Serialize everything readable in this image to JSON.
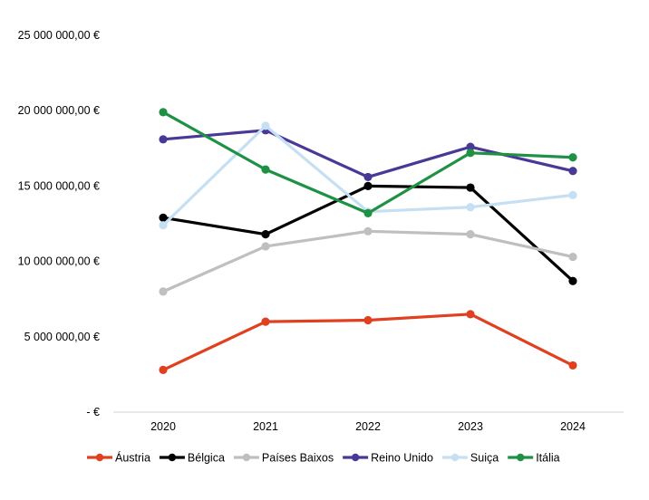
{
  "chart_data": {
    "type": "line",
    "title": "",
    "xlabel": "",
    "ylabel": "",
    "categories": [
      "2020",
      "2021",
      "2022",
      "2023",
      "2024"
    ],
    "ylim": [
      0,
      25000000
    ],
    "y_ticks": [
      {
        "value": 0,
        "label": "-  €"
      },
      {
        "value": 5000000,
        "label": "5 000 000,00 €"
      },
      {
        "value": 10000000,
        "label": "10 000 000,00 €"
      },
      {
        "value": 15000000,
        "label": "15 000 000,00 €"
      },
      {
        "value": 20000000,
        "label": "20 000 000,00 €"
      },
      {
        "value": 25000000,
        "label": "25 000 000,00 €"
      }
    ],
    "grid": false,
    "legend_position": "bottom",
    "series": [
      {
        "name": "Áustria",
        "color": "#e0401f",
        "values": [
          2800000,
          6000000,
          6100000,
          6500000,
          3100000
        ]
      },
      {
        "name": "Bélgica",
        "color": "#000000",
        "values": [
          12900000,
          11800000,
          15000000,
          14900000,
          8700000
        ]
      },
      {
        "name": "Países Baixos",
        "color": "#bfbfbf",
        "values": [
          8000000,
          11000000,
          12000000,
          11800000,
          10300000
        ]
      },
      {
        "name": "Reino Unido",
        "color": "#4a3897",
        "values": [
          18100000,
          18700000,
          15600000,
          17600000,
          16000000
        ]
      },
      {
        "name": "Suiça",
        "color": "#c5dff3",
        "values": [
          12400000,
          19000000,
          13300000,
          13600000,
          14400000
        ]
      },
      {
        "name": "Itália",
        "color": "#1e9145",
        "values": [
          19900000,
          16100000,
          13200000,
          17200000,
          16900000
        ]
      }
    ]
  }
}
